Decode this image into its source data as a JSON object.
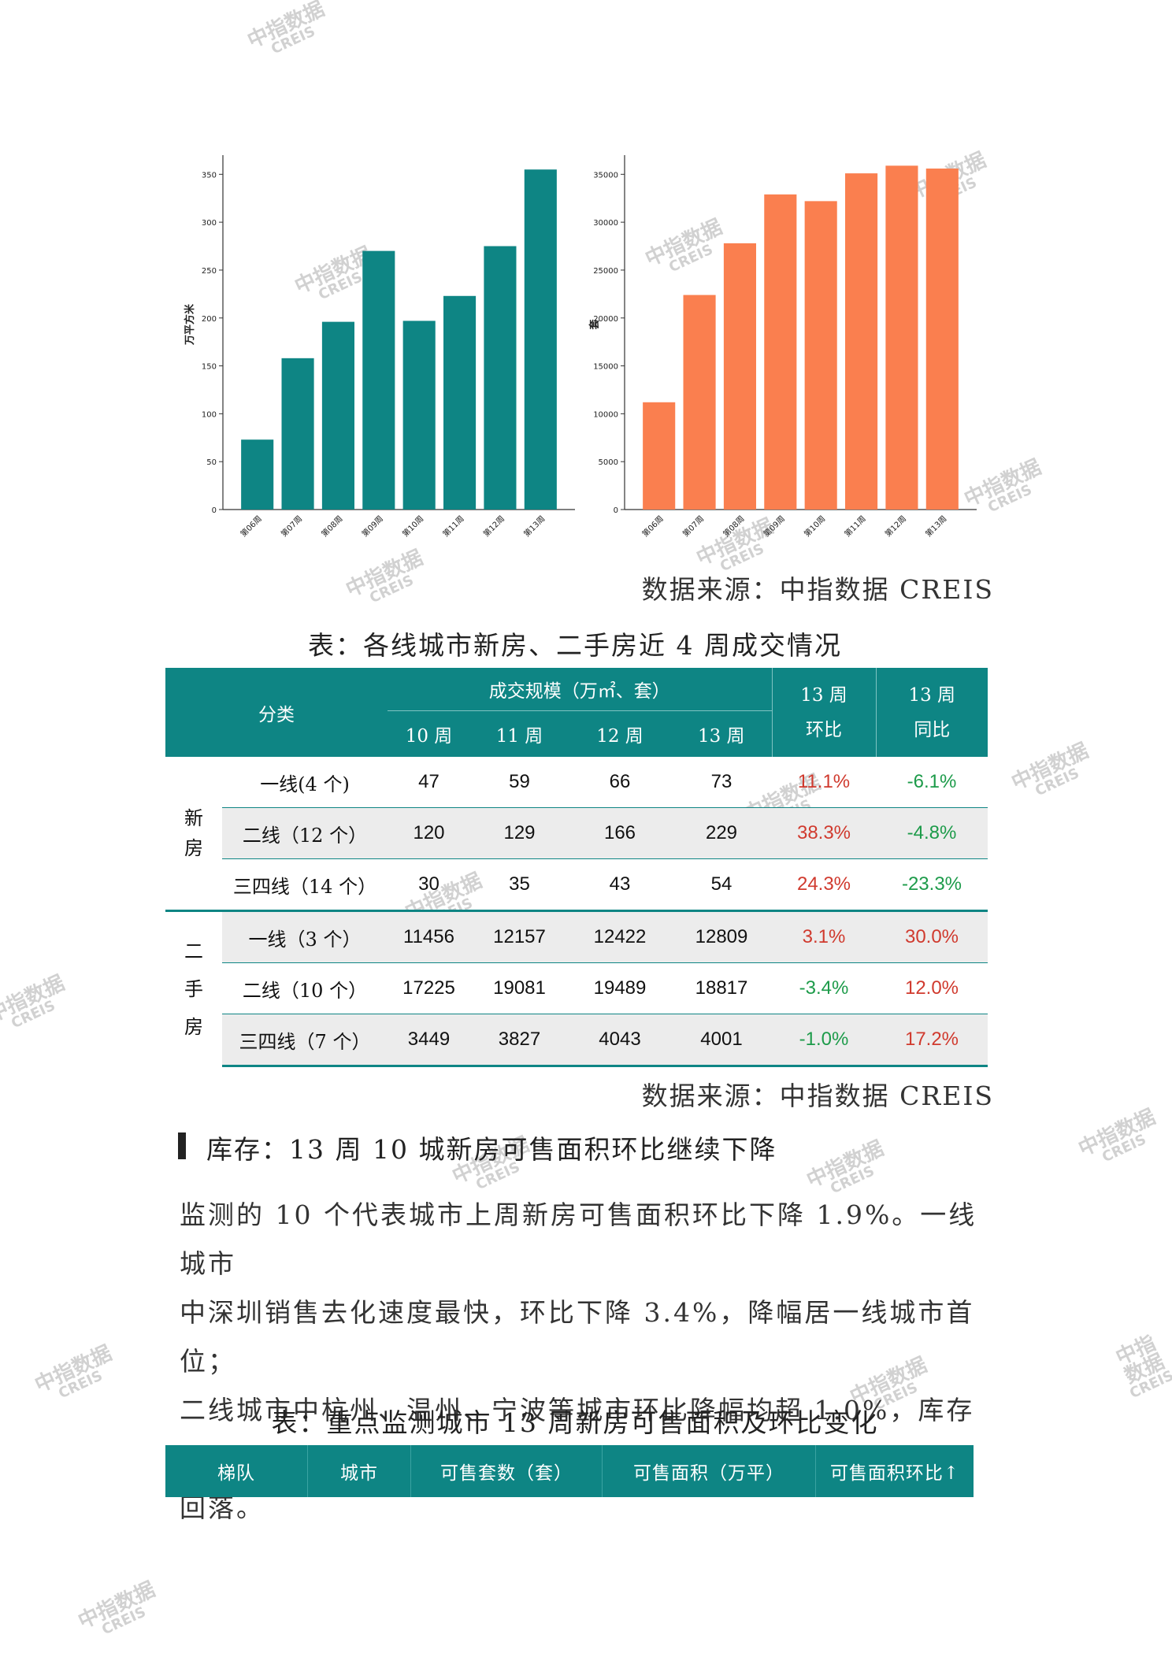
{
  "chart_data": [
    {
      "type": "bar",
      "categories": [
        "第06周",
        "第07周",
        "第08周",
        "第09周",
        "第10周",
        "第11周",
        "第12周",
        "第13周"
      ],
      "values": [
        73,
        158,
        196,
        270,
        197,
        223,
        275,
        355
      ],
      "ylabel": "万平方米",
      "ylim": [
        0,
        370
      ],
      "yticks": [
        0,
        50,
        100,
        150,
        200,
        250,
        300,
        350
      ],
      "color": "#0e8584"
    },
    {
      "type": "bar",
      "categories": [
        "第06周",
        "第07周",
        "第08周",
        "第09周",
        "第10周",
        "第11周",
        "第12周",
        "第13周"
      ],
      "values": [
        11200,
        22400,
        27800,
        32900,
        32200,
        35100,
        35900,
        35600
      ],
      "ylabel": "套",
      "ylim": [
        0,
        37000
      ],
      "yticks": [
        0,
        5000,
        10000,
        15000,
        20000,
        25000,
        30000,
        35000
      ],
      "color": "#fa7f4f"
    }
  ],
  "source_1": "数据来源：中指数据 CREIS",
  "table1": {
    "caption": "表：各线城市新房、二手房近 4 周成交情况",
    "header": {
      "category": "分类",
      "scale": "成交规模（万㎡、套）",
      "weeks": [
        "10 周",
        "11 周",
        "12 周",
        "13 周"
      ],
      "mom_line1": "13 周",
      "mom_line2": "环比",
      "yoy_line1": "13 周",
      "yoy_line2": "同比"
    },
    "groups": [
      {
        "label_chars": [
          "新",
          "房"
        ],
        "rows": [
          {
            "name": "一线(4 个)",
            "w10": "47",
            "w11": "59",
            "w12": "66",
            "w13": "73",
            "mom": "11.1%",
            "mom_color": "red",
            "yoy": "-6.1%",
            "yoy_color": "green"
          },
          {
            "name": "二线（12 个）",
            "w10": "120",
            "w11": "129",
            "w12": "166",
            "w13": "229",
            "mom": "38.3%",
            "mom_color": "red",
            "yoy": "-4.8%",
            "yoy_color": "green"
          },
          {
            "name": "三四线（14 个）",
            "w10": "30",
            "w11": "35",
            "w12": "43",
            "w13": "54",
            "mom": "24.3%",
            "mom_color": "red",
            "yoy": "-23.3%",
            "yoy_color": "green"
          }
        ]
      },
      {
        "label_chars": [
          "二",
          "手",
          "房"
        ],
        "rows": [
          {
            "name": "一线（3 个）",
            "w10": "11456",
            "w11": "12157",
            "w12": "12422",
            "w13": "12809",
            "mom": "3.1%",
            "mom_color": "red",
            "yoy": "30.0%",
            "yoy_color": "red"
          },
          {
            "name": "二线（10 个）",
            "w10": "17225",
            "w11": "19081",
            "w12": "19489",
            "w13": "18817",
            "mom": "-3.4%",
            "mom_color": "green",
            "yoy": "12.0%",
            "yoy_color": "red"
          },
          {
            "name": "三四线（7 个）",
            "w10": "3449",
            "w11": "3827",
            "w12": "4043",
            "w13": "4001",
            "mom": "-1.0%",
            "mom_color": "green",
            "yoy": "17.2%",
            "yoy_color": "red"
          }
        ]
      }
    ]
  },
  "source_2": "数据来源：中指数据 CREIS",
  "section_heading": "库存：13 周 10 城新房可售面积环比继续下降",
  "paragraph_lines": [
    "监测的 10 个代表城市上周新房可售面积环比下降 1.9%。一线城市",
    "中深圳销售去化速度最快，环比下降 3.4%，降幅居一线城市首位；",
    "二线城市中杭州、温州、宁波等城市环比降幅均超 1.0%，库存有所",
    "回落。"
  ],
  "table2": {
    "caption": "表：重点监测城市 13 周新房可售面积及环比变化",
    "headers": [
      "梯队",
      "城市",
      "可售套数（套）",
      "可售面积（万平）",
      "可售面积环比↑"
    ]
  },
  "watermark": {
    "line1": "中指数据",
    "line2": "CREIS"
  },
  "colors": {
    "teal": "#0e8584",
    "orange": "#fa7f4f",
    "red": "#d03a2e",
    "green": "#1d9b4a"
  }
}
